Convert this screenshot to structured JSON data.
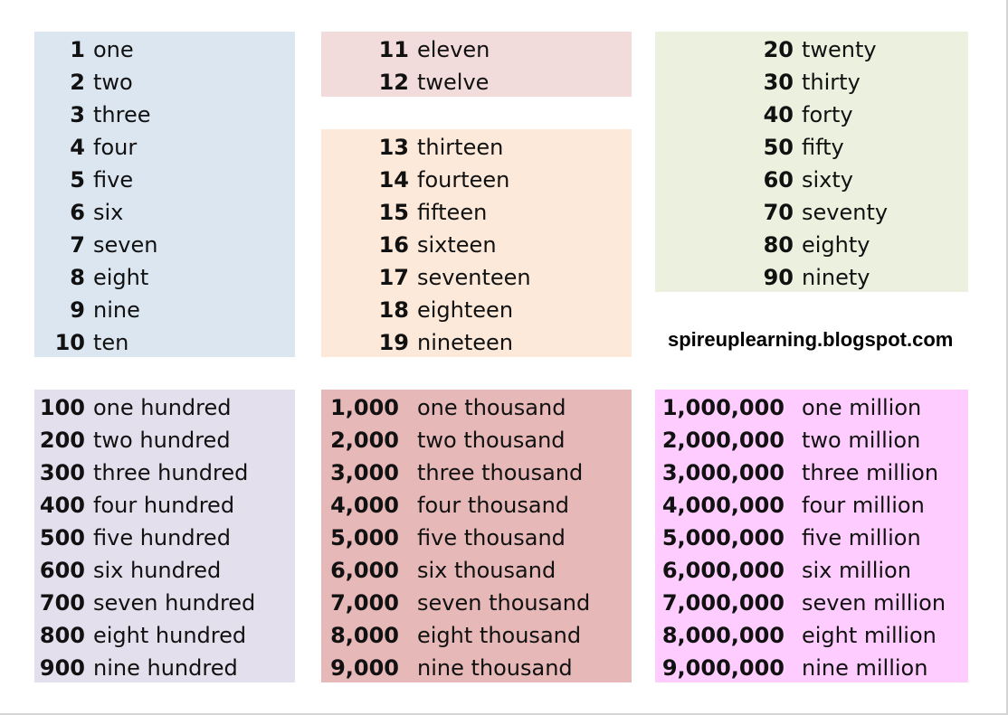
{
  "groups": [
    {
      "id": "ones",
      "color": "#dce6f1",
      "rows": [
        {
          "num": "1",
          "word": "one"
        },
        {
          "num": "2",
          "word": "two"
        },
        {
          "num": "3",
          "word": "three"
        },
        {
          "num": "4",
          "word": "four"
        },
        {
          "num": "5",
          "word": "five"
        },
        {
          "num": "6",
          "word": "six"
        },
        {
          "num": "7",
          "word": "seven"
        },
        {
          "num": "8",
          "word": "eight"
        },
        {
          "num": "9",
          "word": "nine"
        },
        {
          "num": "10",
          "word": "ten"
        }
      ]
    },
    {
      "id": "eleven-twelve",
      "color": "#f2dcdb",
      "rows": [
        {
          "num": "11",
          "word": "eleven"
        },
        {
          "num": "12",
          "word": "twelve"
        }
      ]
    },
    {
      "id": "teens",
      "color": "#fde9d9",
      "rows": [
        {
          "num": "13",
          "word": "thirteen"
        },
        {
          "num": "14",
          "word": "fourteen"
        },
        {
          "num": "15",
          "word": "fifteen"
        },
        {
          "num": "16",
          "word": "sixteen"
        },
        {
          "num": "17",
          "word": "seventeen"
        },
        {
          "num": "18",
          "word": "eighteen"
        },
        {
          "num": "19",
          "word": "nineteen"
        }
      ]
    },
    {
      "id": "tens",
      "color": "#ebf1de",
      "rows": [
        {
          "num": "20",
          "word": "twenty"
        },
        {
          "num": "30",
          "word": "thirty"
        },
        {
          "num": "40",
          "word": "forty"
        },
        {
          "num": "50",
          "word": "fifty"
        },
        {
          "num": "60",
          "word": "sixty"
        },
        {
          "num": "70",
          "word": "seventy"
        },
        {
          "num": "80",
          "word": "eighty"
        },
        {
          "num": "90",
          "word": "ninety"
        }
      ]
    },
    {
      "id": "hundreds",
      "color": "#e4dfec",
      "rows": [
        {
          "num": "100",
          "word": "one hundred"
        },
        {
          "num": "200",
          "word": "two hundred"
        },
        {
          "num": "300",
          "word": "three hundred"
        },
        {
          "num": "400",
          "word": "four hundred"
        },
        {
          "num": "500",
          "word": "five hundred"
        },
        {
          "num": "600",
          "word": "six hundred"
        },
        {
          "num": "700",
          "word": "seven hundred"
        },
        {
          "num": "800",
          "word": "eight hundred"
        },
        {
          "num": "900",
          "word": "nine hundred"
        }
      ]
    },
    {
      "id": "thousands",
      "color": "#e6b8b7",
      "rows": [
        {
          "num": "1,000",
          "word": "one thousand"
        },
        {
          "num": "2,000",
          "word": "two thousand"
        },
        {
          "num": "3,000",
          "word": "three thousand"
        },
        {
          "num": "4,000",
          "word": "four thousand"
        },
        {
          "num": "5,000",
          "word": "five thousand"
        },
        {
          "num": "6,000",
          "word": "six thousand"
        },
        {
          "num": "7,000",
          "word": "seven thousand"
        },
        {
          "num": "8,000",
          "word": "eight thousand"
        },
        {
          "num": "9,000",
          "word": "nine thousand"
        }
      ]
    },
    {
      "id": "millions",
      "color": "#ffccff",
      "rows": [
        {
          "num": "1,000,000",
          "word": "one million"
        },
        {
          "num": "2,000,000",
          "word": "two million"
        },
        {
          "num": "3,000,000",
          "word": "three million"
        },
        {
          "num": "4,000,000",
          "word": "four million"
        },
        {
          "num": "5,000,000",
          "word": "five million"
        },
        {
          "num": "6,000,000",
          "word": "six million"
        },
        {
          "num": "7,000,000",
          "word": "seven million"
        },
        {
          "num": "8,000,000",
          "word": "eight million"
        },
        {
          "num": "9,000,000",
          "word": "nine million"
        }
      ]
    }
  ],
  "website": "spireuplearning.blogspot.com"
}
